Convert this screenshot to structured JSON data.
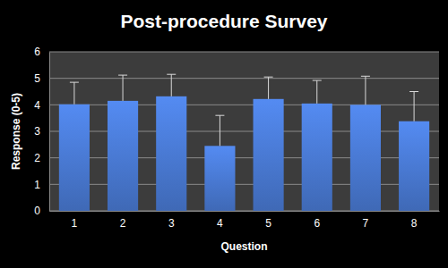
{
  "chart_data": {
    "type": "bar",
    "title": "Post-procedure Survey",
    "x_label": "Question",
    "y_label": "Response (0-5)",
    "categories": [
      "1",
      "2",
      "3",
      "4",
      "5",
      "6",
      "7",
      "8"
    ],
    "values": [
      4.02,
      4.15,
      4.32,
      2.45,
      4.22,
      4.05,
      4.0,
      3.38
    ],
    "errors": [
      0.83,
      0.97,
      0.83,
      1.15,
      0.83,
      0.87,
      1.08,
      1.12
    ],
    "color": "#4a7bd6",
    "ylim": [
      0,
      6
    ],
    "yticks": [
      0,
      1,
      2,
      3,
      4,
      5,
      6
    ],
    "grid": true
  }
}
